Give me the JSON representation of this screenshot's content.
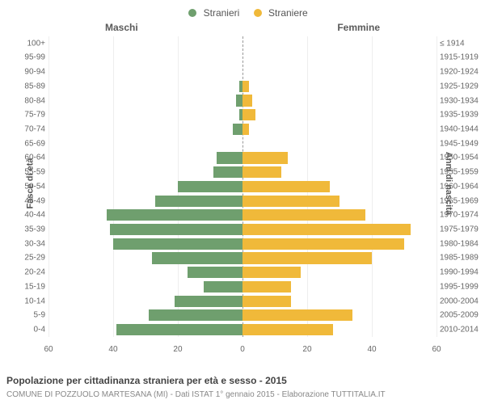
{
  "legend": {
    "m": "Stranieri",
    "f": "Straniere"
  },
  "columns": {
    "left": "Maschi",
    "right": "Femmine"
  },
  "ylabels": {
    "left": "Fasce di età",
    "right": "Anni di nascita"
  },
  "footer": {
    "line1": "Popolazione per cittadinanza straniera per età e sesso - 2015",
    "line2": "COMUNE DI POZZUOLO MARTESANA (MI) - Dati ISTAT 1° gennaio 2015 - Elaborazione TUTTITALIA.IT"
  },
  "chart": {
    "type": "population-pyramid",
    "xmax": 60,
    "xticks": [
      60,
      40,
      20,
      0,
      20,
      40,
      60
    ],
    "xticks_labels": [
      "60",
      "40",
      "20",
      "0",
      "20",
      "40",
      "60"
    ],
    "colors": {
      "m": "#6f9f6e",
      "f": "#f0b93a",
      "grid": "#eeeeee",
      "center": "#999999"
    },
    "bands": [
      {
        "age": "100+",
        "birth": "≤ 1914",
        "m": 0,
        "f": 0
      },
      {
        "age": "95-99",
        "birth": "1915-1919",
        "m": 0,
        "f": 0
      },
      {
        "age": "90-94",
        "birth": "1920-1924",
        "m": 0,
        "f": 0
      },
      {
        "age": "85-89",
        "birth": "1925-1929",
        "m": 1,
        "f": 2
      },
      {
        "age": "80-84",
        "birth": "1930-1934",
        "m": 2,
        "f": 3
      },
      {
        "age": "75-79",
        "birth": "1935-1939",
        "m": 1,
        "f": 4
      },
      {
        "age": "70-74",
        "birth": "1940-1944",
        "m": 3,
        "f": 2
      },
      {
        "age": "65-69",
        "birth": "1945-1949",
        "m": 0,
        "f": 0
      },
      {
        "age": "60-64",
        "birth": "1950-1954",
        "m": 8,
        "f": 14
      },
      {
        "age": "55-59",
        "birth": "1955-1959",
        "m": 9,
        "f": 12
      },
      {
        "age": "50-54",
        "birth": "1960-1964",
        "m": 20,
        "f": 27
      },
      {
        "age": "45-49",
        "birth": "1965-1969",
        "m": 27,
        "f": 30
      },
      {
        "age": "40-44",
        "birth": "1970-1974",
        "m": 42,
        "f": 38
      },
      {
        "age": "35-39",
        "birth": "1975-1979",
        "m": 41,
        "f": 52
      },
      {
        "age": "30-34",
        "birth": "1980-1984",
        "m": 40,
        "f": 50
      },
      {
        "age": "25-29",
        "birth": "1985-1989",
        "m": 28,
        "f": 40
      },
      {
        "age": "20-24",
        "birth": "1990-1994",
        "m": 17,
        "f": 18
      },
      {
        "age": "15-19",
        "birth": "1995-1999",
        "m": 12,
        "f": 15
      },
      {
        "age": "10-14",
        "birth": "2000-2004",
        "m": 21,
        "f": 15
      },
      {
        "age": "5-9",
        "birth": "2005-2009",
        "m": 29,
        "f": 34
      },
      {
        "age": "0-4",
        "birth": "2010-2014",
        "m": 39,
        "f": 28
      }
    ]
  }
}
